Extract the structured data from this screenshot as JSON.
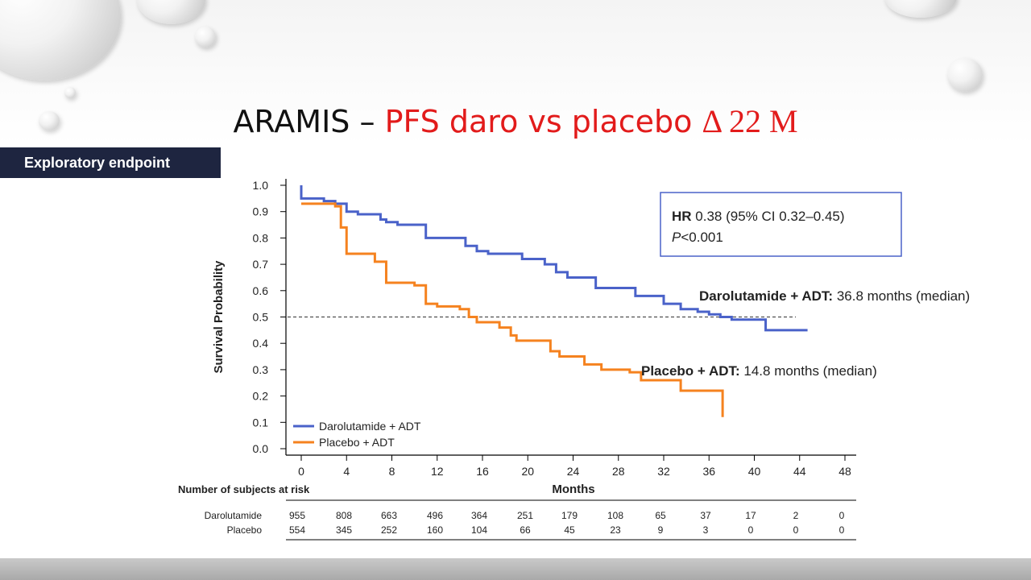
{
  "slide": {
    "title_prefix": "ARAMIS – ",
    "title_highlight": "PFS daro vs placebo ",
    "title_delta": "Δ 22 M",
    "badge": "Exploratory endpoint"
  },
  "colors": {
    "darolutamide": "#4a62c9",
    "placebo": "#f5821f",
    "title_red": "#e21b1b",
    "badge_bg": "#1e2540"
  },
  "chart_data": {
    "type": "line",
    "ylabel": "Survival Probability",
    "xlabel": "Months",
    "xlim": [
      0,
      48
    ],
    "ylim": [
      0,
      1
    ],
    "x_ticks": [
      0,
      4,
      8,
      12,
      16,
      20,
      24,
      28,
      32,
      36,
      40,
      44,
      48
    ],
    "y_ticks": [
      "0.0",
      "0.1",
      "0.2",
      "0.3",
      "0.4",
      "0.5",
      "0.6",
      "0.7",
      "0.8",
      "0.9",
      "1.0"
    ],
    "reference_line": {
      "y": 0.5,
      "style": "dashed"
    },
    "legend": {
      "position": "bottom-left",
      "entries": [
        "Darolutamide + ADT",
        "Placebo + ADT"
      ]
    },
    "hr_box": {
      "hr_label": "HR",
      "hr_text": " 0.38 (95% CI 0.32–0.45)",
      "p_label": "P",
      "p_text": "<0.001"
    },
    "series": [
      {
        "name": "Darolutamide + ADT",
        "annotation_bold": "Darolutamide + ADT:",
        "annotation_text": " 36.8 months (median)",
        "points": [
          [
            0,
            1.0
          ],
          [
            0,
            0.95
          ],
          [
            2,
            0.94
          ],
          [
            3,
            0.93
          ],
          [
            4,
            0.9
          ],
          [
            5,
            0.89
          ],
          [
            7,
            0.87
          ],
          [
            7.5,
            0.86
          ],
          [
            8.5,
            0.85
          ],
          [
            11,
            0.8
          ],
          [
            14.5,
            0.77
          ],
          [
            15.5,
            0.75
          ],
          [
            16.5,
            0.74
          ],
          [
            19.5,
            0.72
          ],
          [
            21.5,
            0.7
          ],
          [
            22.5,
            0.67
          ],
          [
            23.5,
            0.65
          ],
          [
            26,
            0.61
          ],
          [
            29.5,
            0.58
          ],
          [
            32,
            0.55
          ],
          [
            33.5,
            0.53
          ],
          [
            35,
            0.52
          ],
          [
            36,
            0.51
          ],
          [
            37,
            0.5
          ],
          [
            38,
            0.49
          ],
          [
            40.5,
            0.49
          ],
          [
            41,
            0.45
          ],
          [
            44.7,
            0.45
          ]
        ]
      },
      {
        "name": "Placebo + ADT",
        "annotation_bold": "Placebo + ADT:",
        "annotation_text": " 14.8 months (median)",
        "points": [
          [
            0,
            0.93
          ],
          [
            3,
            0.92
          ],
          [
            3.5,
            0.84
          ],
          [
            4,
            0.74
          ],
          [
            6.5,
            0.71
          ],
          [
            7.5,
            0.63
          ],
          [
            10,
            0.62
          ],
          [
            11,
            0.55
          ],
          [
            12,
            0.54
          ],
          [
            14,
            0.53
          ],
          [
            14.8,
            0.5
          ],
          [
            15.5,
            0.48
          ],
          [
            17.5,
            0.46
          ],
          [
            18.5,
            0.43
          ],
          [
            19,
            0.41
          ],
          [
            22,
            0.37
          ],
          [
            22.8,
            0.35
          ],
          [
            25,
            0.32
          ],
          [
            26.5,
            0.3
          ],
          [
            29,
            0.29
          ],
          [
            30,
            0.26
          ],
          [
            33.5,
            0.22
          ],
          [
            37.2,
            0.22
          ],
          [
            37.2,
            0.12
          ]
        ]
      }
    ],
    "risk_table": {
      "title": "Number of subjects at risk",
      "rows": [
        {
          "label": "Darolutamide",
          "values": [
            "955",
            "808",
            "663",
            "496",
            "364",
            "251",
            "179",
            "108",
            "65",
            "37",
            "17",
            "2",
            "0"
          ]
        },
        {
          "label": "Placebo",
          "values": [
            "554",
            "345",
            "252",
            "160",
            "104",
            "66",
            "45",
            "23",
            "9",
            "3",
            "0",
            "0",
            "0"
          ]
        }
      ]
    }
  }
}
